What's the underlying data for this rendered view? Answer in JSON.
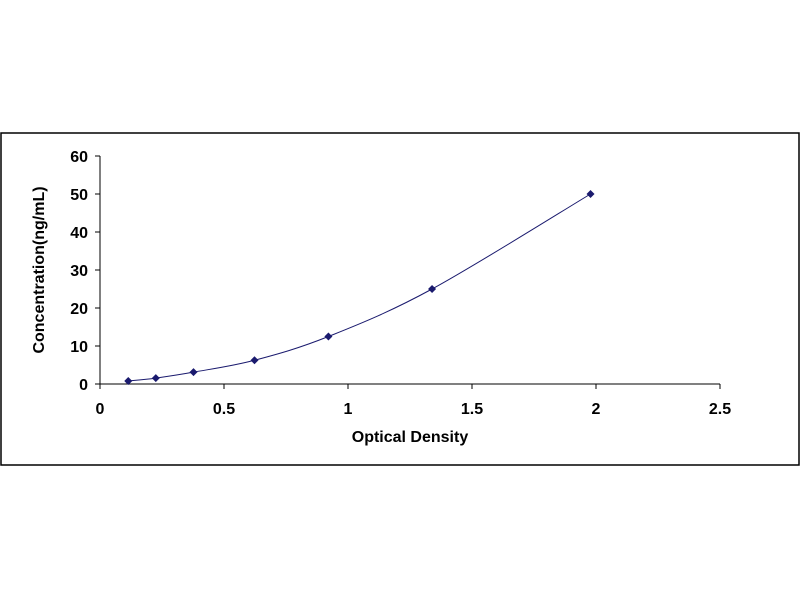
{
  "chart_data": {
    "type": "scatter",
    "title": "",
    "xlabel": "Optical Density",
    "ylabel": "Concentration(ng/mL)",
    "xlim": [
      0,
      2.5
    ],
    "ylim": [
      0,
      60
    ],
    "x_ticks": [
      "0",
      "0.5",
      "1",
      "1.5",
      "2",
      "2.5"
    ],
    "y_ticks": [
      "0",
      "10",
      "20",
      "30",
      "40",
      "50",
      "60"
    ],
    "grid": false,
    "legend": "none",
    "fit_line": true,
    "marker": "diamond",
    "series": [
      {
        "x": [
          0.114,
          0.225,
          0.377,
          0.623,
          0.921,
          1.339,
          1.978
        ],
        "y": [
          0.78,
          1.56,
          3.12,
          6.25,
          12.5,
          25,
          50
        ]
      }
    ],
    "colors": {
      "marker": "#1a1a6e",
      "line": "#1a1a6e",
      "axis": "#000000",
      "frame": "#000000"
    }
  }
}
